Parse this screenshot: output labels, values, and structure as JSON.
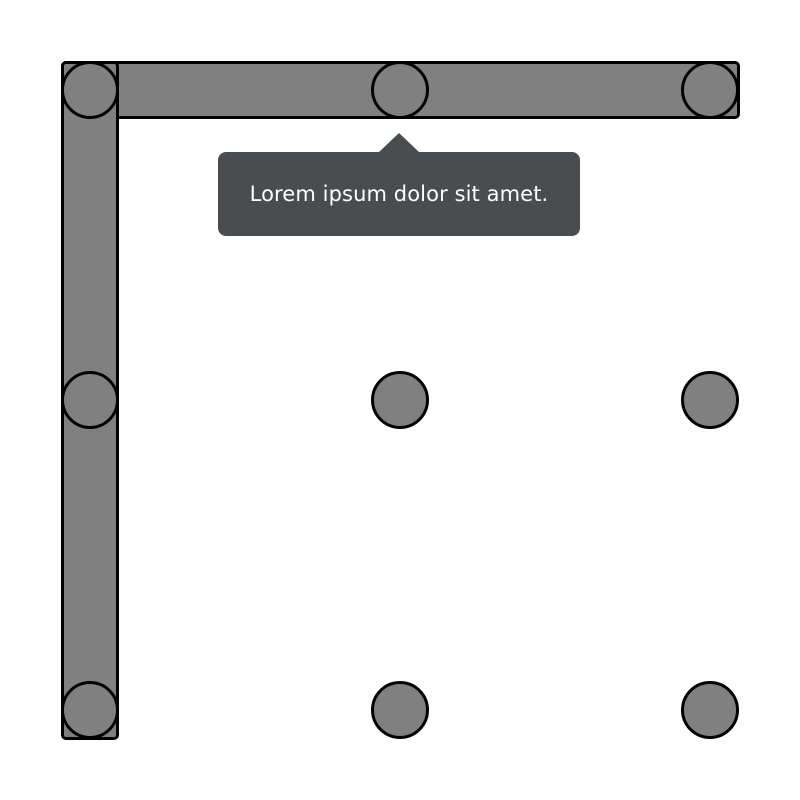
{
  "colors": {
    "background": "#ffffff",
    "shape_fill": "#808080",
    "shape_stroke": "#000000",
    "tooltip_background": "#4a4d50",
    "tooltip_text": "#ffffff"
  },
  "grid": {
    "rows": 3,
    "columns": 3,
    "highlighted_path": [
      "row-1-col-1",
      "row-1-col-2",
      "row-1-col-3",
      "row-2-col-1",
      "row-3-col-1"
    ]
  },
  "tooltip": {
    "text": "Lorem ipsum dolor sit amet.",
    "anchor": "row-1-col-2"
  }
}
